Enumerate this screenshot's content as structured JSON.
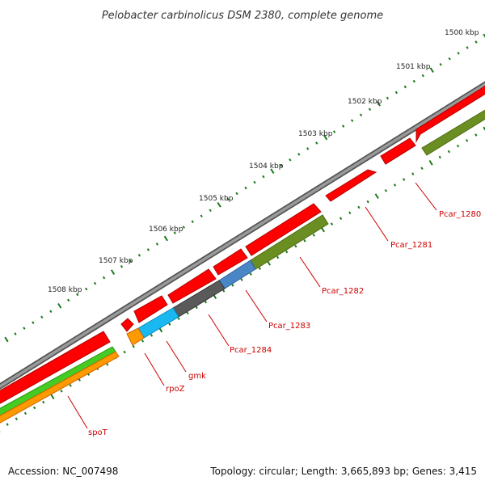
{
  "title": "Pelobacter carbinolicus DSM 2380, complete genome",
  "footer": {
    "accession": "Accession: NC_007498",
    "summary": "Topology: circular; Length: 3,665,893 bp; Genes: 3,415"
  },
  "ticks": [
    {
      "label": "1500 kbp"
    },
    {
      "label": "1501 kbp"
    },
    {
      "label": "1502 kbp"
    },
    {
      "label": "1503 kbp"
    },
    {
      "label": "1504 kbp"
    },
    {
      "label": "1505 kbp"
    },
    {
      "label": "1506 kbp"
    },
    {
      "label": "1507 kbp"
    },
    {
      "label": "1508 kbp"
    }
  ],
  "genes": [
    {
      "label": "Pcar_1280",
      "color": "#ff0000"
    },
    {
      "label": "Pcar_1281",
      "color": "#ff0000"
    },
    {
      "label": "Pcar_1282",
      "color": "#ff0000"
    },
    {
      "label": "Pcar_1283",
      "color": "#ff0000"
    },
    {
      "label": "Pcar_1284",
      "color": "#ff0000"
    },
    {
      "label": "gmk",
      "color": "#ff0000"
    },
    {
      "label": "rpoZ",
      "color": "#ff0000"
    },
    {
      "label": "spoT",
      "color": "#ff0000"
    }
  ],
  "colors": {
    "backbone": "#8a8a8a",
    "cds": "#ff0000",
    "ticks": "#1a7a1a",
    "olive": "#6b8e23",
    "blue": "#4a86c5",
    "dark_gray": "#5a5a5a",
    "cyan": "#1ab8f0",
    "orange": "#ff9900",
    "green": "#44cc22",
    "label": "#cc0000"
  }
}
